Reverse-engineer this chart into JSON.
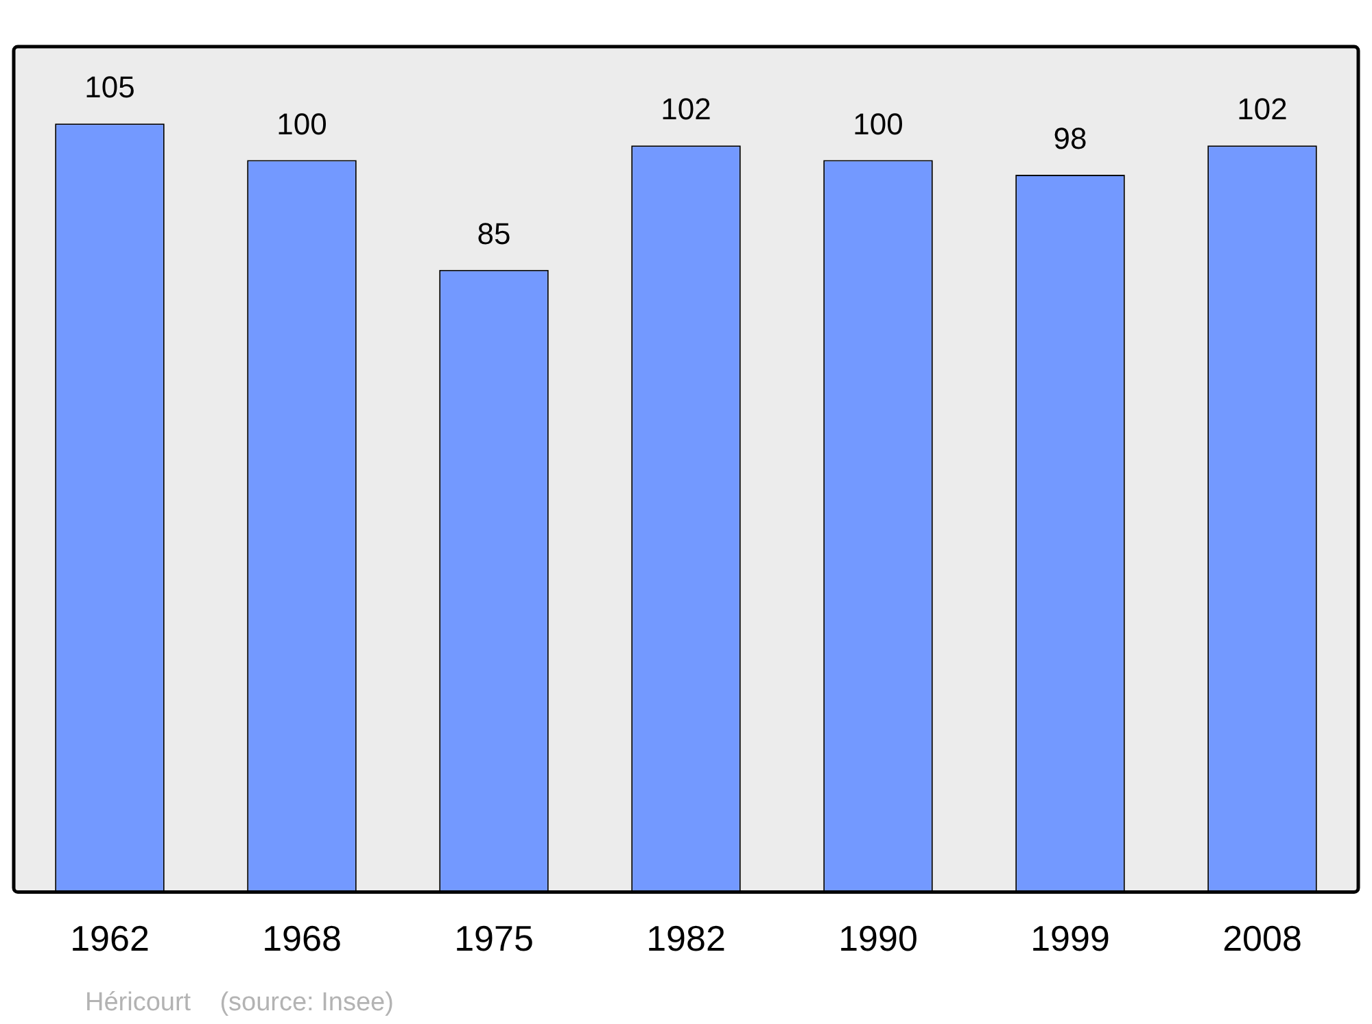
{
  "chart_data": {
    "type": "bar",
    "categories": [
      "1962",
      "1968",
      "1975",
      "1982",
      "1990",
      "1999",
      "2008"
    ],
    "values": [
      105,
      100,
      85,
      102,
      100,
      98,
      102
    ],
    "color": "#7399ff",
    "ylim": [
      0,
      115.5
    ],
    "data_labels": true,
    "grid": false,
    "tick_labels": "x",
    "annotations": [
      "Héricourt    (source: Insee)"
    ]
  }
}
